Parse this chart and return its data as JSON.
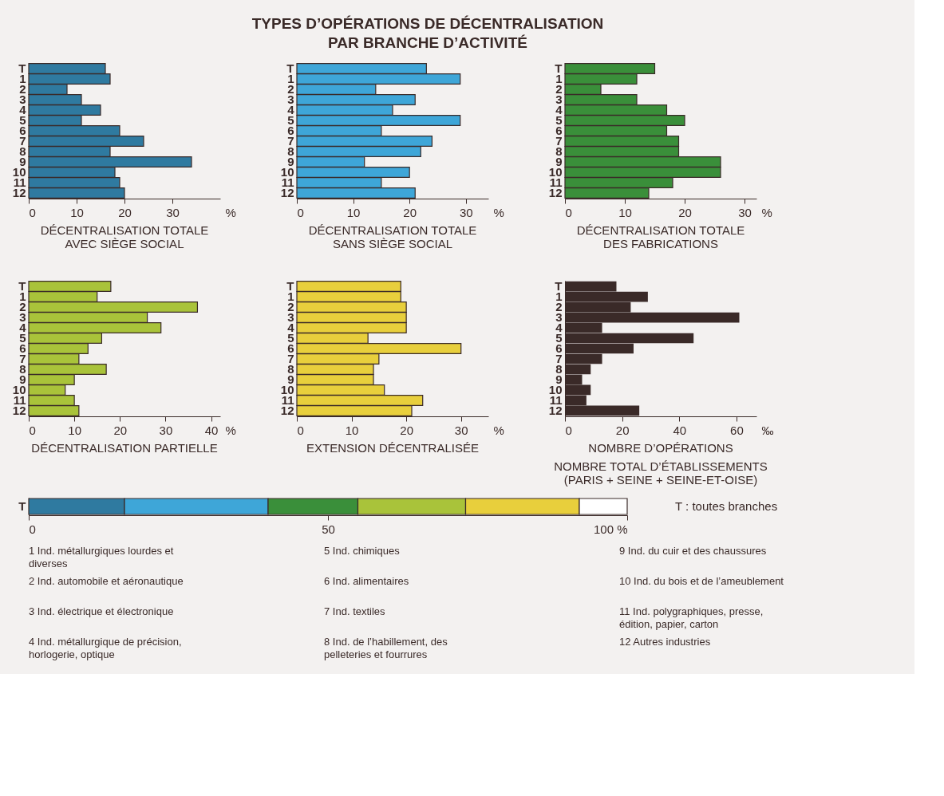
{
  "chart_data": [
    {
      "type": "other",
      "title": "TYPES D’OPÉRATIONS DE DÉCENTRALISATION PAR BRANCHE D’ACTIVITÉ"
    },
    {
      "type": "bar",
      "orientation": "horizontal",
      "title": "DÉCENTRALISATION TOTALE AVEC SIÈGE SOCIAL",
      "xlabel": "%",
      "categories": [
        "T",
        "1",
        "2",
        "3",
        "4",
        "5",
        "6",
        "7",
        "8",
        "9",
        "10",
        "11",
        "12"
      ],
      "values": [
        16,
        17,
        8,
        11,
        15,
        11,
        19,
        24,
        17,
        34,
        18,
        19,
        20
      ],
      "color": "#2f7aa0",
      "xlim": [
        0,
        40
      ],
      "xticks": [
        0,
        10,
        20,
        30
      ]
    },
    {
      "type": "bar",
      "orientation": "horizontal",
      "title": "DÉCENTRALISATION TOTALE SANS SIÈGE SOCIAL",
      "xlabel": "%",
      "categories": [
        "T",
        "1",
        "2",
        "3",
        "4",
        "5",
        "6",
        "7",
        "8",
        "9",
        "10",
        "11",
        "12"
      ],
      "values": [
        23,
        29,
        14,
        21,
        17,
        29,
        15,
        24,
        22,
        12,
        20,
        15,
        21
      ],
      "color": "#3ea6d8",
      "xlim": [
        0,
        34
      ],
      "xticks": [
        0,
        10,
        20,
        30
      ]
    },
    {
      "type": "bar",
      "orientation": "horizontal",
      "title": "DÉCENTRALISATION TOTALE DES FABRICATIONS",
      "xlabel": "%",
      "categories": [
        "T",
        "1",
        "2",
        "3",
        "4",
        "5",
        "6",
        "7",
        "8",
        "9",
        "10",
        "11",
        "12"
      ],
      "values": [
        15,
        12,
        6,
        12,
        17,
        20,
        17,
        19,
        19,
        26,
        26,
        18,
        14
      ],
      "color": "#3a8f3a",
      "xlim": [
        0,
        32
      ],
      "xticks": [
        0,
        10,
        20,
        30
      ]
    },
    {
      "type": "bar",
      "orientation": "horizontal",
      "title": "DÉCENTRALISATION PARTIELLE",
      "xlabel": "%",
      "categories": [
        "T",
        "1",
        "2",
        "3",
        "4",
        "5",
        "6",
        "7",
        "8",
        "9",
        "10",
        "11",
        "12"
      ],
      "values": [
        18,
        15,
        37,
        26,
        29,
        16,
        13,
        11,
        17,
        10,
        8,
        10,
        11
      ],
      "color": "#a9c33a",
      "xlim": [
        0,
        42
      ],
      "xticks": [
        0,
        10,
        20,
        30,
        40
      ]
    },
    {
      "type": "bar",
      "orientation": "horizontal",
      "title": "EXTENSION DÉCENTRALISÉE",
      "xlabel": "%",
      "categories": [
        "T",
        "1",
        "2",
        "3",
        "4",
        "5",
        "6",
        "7",
        "8",
        "9",
        "10",
        "11",
        "12"
      ],
      "values": [
        19,
        19,
        20,
        20,
        20,
        13,
        30,
        15,
        14,
        14,
        16,
        23,
        21
      ],
      "color": "#e8cf3c",
      "xlim": [
        0,
        35
      ],
      "xticks": [
        0,
        10,
        20,
        30
      ]
    },
    {
      "type": "bar",
      "orientation": "horizontal",
      "title": "NOMBRE D’OPÉRATIONS",
      "subtitle": "NOMBRE TOTAL D’ÉTABLISSEMENTS (PARIS + SEINE + SEINE-ET-OISE)",
      "xlabel": "‰",
      "categories": [
        "T",
        "1",
        "2",
        "3",
        "4",
        "5",
        "6",
        "7",
        "8",
        "9",
        "10",
        "11",
        "12"
      ],
      "values": [
        18,
        29,
        23,
        61,
        13,
        45,
        24,
        13,
        9,
        6,
        9,
        7.5,
        26
      ],
      "color": "#3a2a28",
      "xlim": [
        0,
        67
      ],
      "xticks": [
        0,
        20,
        40,
        60
      ]
    },
    {
      "type": "bar",
      "orientation": "horizontal",
      "stacked": true,
      "categories": [
        "T"
      ],
      "xlim": [
        0,
        100
      ],
      "xticks": [
        0,
        50,
        {
          "value": 100,
          "label": "100 %"
        }
      ],
      "series": [
        {
          "color": "#2f7aa0",
          "values": [
            16
          ]
        },
        {
          "color": "#3ea6d8",
          "values": [
            24
          ]
        },
        {
          "color": "#3a8f3a",
          "values": [
            15
          ]
        },
        {
          "color": "#a9c33a",
          "values": [
            18
          ]
        },
        {
          "color": "#e8cf3c",
          "values": [
            19
          ]
        },
        {
          "color": "#ffffff",
          "values": [
            8
          ]
        }
      ],
      "annotations": [
        "T : toutes branches",
        "1  Ind. métallurgiques lourdes et diverses",
        "2  Ind. automobile et aéronautique",
        "3  Ind. électrique et électronique",
        "4  Ind. métallurgique de précision, horlogerie, optique",
        "5  Ind. chimiques",
        "6  Ind. alimentaires",
        "7  Ind. textiles",
        "8  Ind. de l’habillement, des pelleteries et fourrures",
        "9  Ind. du cuir et des chaussures",
        "10  Ind. du bois et de l’ameublement",
        "11  Ind. polygraphiques, presse, édition, papier, carton",
        "12  Autres industries"
      ]
    }
  ]
}
